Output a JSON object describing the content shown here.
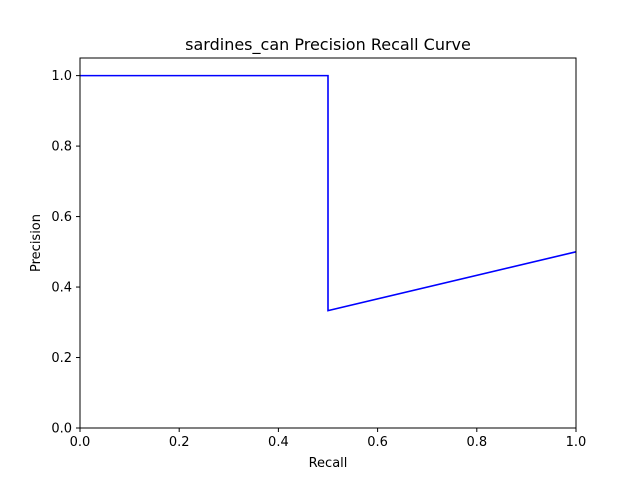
{
  "chart_data": {
    "type": "line",
    "title": "sardines_can Precision Recall Curve",
    "xlabel": "Recall",
    "ylabel": "Precision",
    "xlim": [
      0.0,
      1.0
    ],
    "ylim": [
      0.0,
      1.05
    ],
    "grid": false,
    "xticks": [
      "0.0",
      "0.2",
      "0.4",
      "0.6",
      "0.8",
      "1.0"
    ],
    "yticks": [
      "0.0",
      "0.2",
      "0.4",
      "0.6",
      "0.8",
      "1.0"
    ],
    "series": [
      {
        "color": "#0000ff",
        "x": [
          0.0,
          0.5,
          0.5,
          1.0
        ],
        "y": [
          1.0,
          1.0,
          0.333,
          0.5
        ]
      }
    ]
  }
}
